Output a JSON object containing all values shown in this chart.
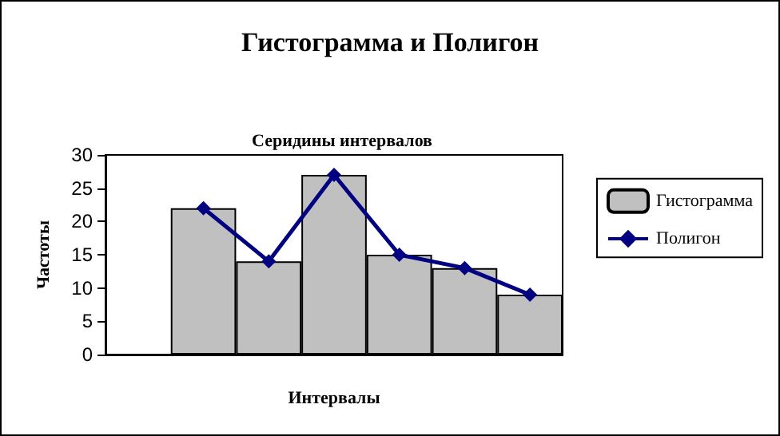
{
  "chart_data": {
    "type": "bar",
    "title": "Гистограмма и Полигон",
    "subtitle": "Серидины интервалов",
    "xlabel": "Интервалы",
    "ylabel": "Частоты",
    "categories": [
      null,
      null,
      null,
      null,
      null,
      null,
      null
    ],
    "series": [
      {
        "name": "Гистограмма",
        "color": "#c0c0c0",
        "values": [
          null,
          22,
          14,
          27,
          15,
          13,
          9
        ]
      },
      {
        "name": "Полигон",
        "type": "line",
        "color": "#000080",
        "values": [
          null,
          22,
          14,
          27,
          15,
          13,
          9
        ]
      }
    ],
    "ylim": [
      0,
      30
    ],
    "yticks": [
      0,
      5,
      10,
      15,
      20,
      25,
      30
    ],
    "grid": false,
    "legend": "right",
    "tick_labels": "y",
    "marker": "diamond",
    "line_style": "solid"
  }
}
